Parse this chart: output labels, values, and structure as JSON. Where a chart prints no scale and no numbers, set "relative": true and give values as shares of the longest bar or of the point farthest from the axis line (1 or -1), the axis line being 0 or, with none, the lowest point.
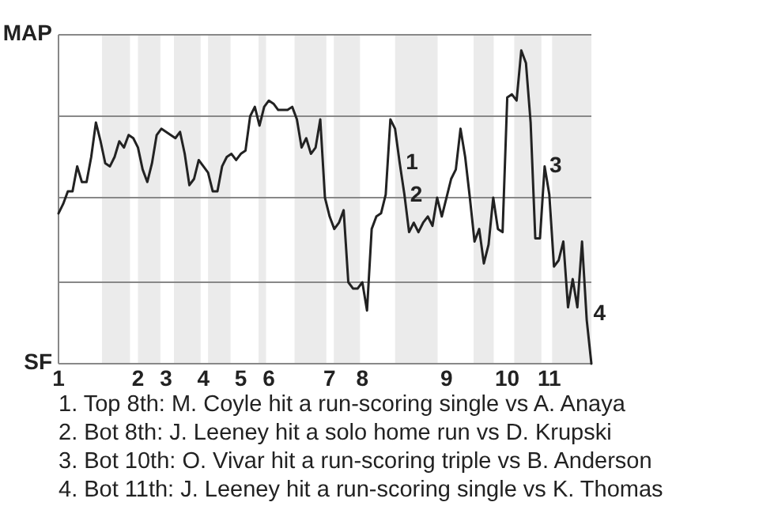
{
  "chart_data": {
    "type": "line",
    "relative": true,
    "categories": [
      "1",
      null,
      null,
      null,
      null,
      null,
      null,
      null,
      null,
      null,
      null,
      null,
      null,
      null,
      null,
      null,
      null,
      "2",
      null,
      null,
      null,
      null,
      null,
      "3",
      null,
      null,
      null,
      null,
      null,
      null,
      null,
      "4",
      null,
      null,
      null,
      null,
      null,
      null,
      null,
      "5",
      null,
      null,
      null,
      null,
      null,
      "6",
      null,
      null,
      null,
      null,
      null,
      null,
      null,
      null,
      null,
      null,
      null,
      null,
      "7",
      null,
      null,
      null,
      null,
      null,
      null,
      "8",
      null,
      null,
      null,
      null,
      null,
      null,
      null,
      null,
      null,
      null,
      null,
      null,
      null,
      null,
      null,
      null,
      null,
      "9",
      null,
      null,
      null,
      null,
      null,
      null,
      null,
      null,
      null,
      null,
      null,
      null,
      "10",
      null,
      null,
      null,
      null,
      null,
      null,
      null,
      null,
      "11",
      null,
      null,
      null,
      null,
      null,
      null,
      null,
      null,
      null
    ],
    "series": [
      {
        "color": "#222222",
        "values": [
          0.48,
          0.51,
          0.55,
          0.55,
          0.63,
          0.58,
          0.58,
          0.66,
          0.77,
          0.71,
          0.64,
          0.63,
          0.66,
          0.71,
          0.69,
          0.73,
          0.72,
          0.69,
          0.62,
          0.58,
          0.64,
          0.73,
          0.75,
          0.74,
          0.73,
          0.72,
          0.74,
          0.67,
          0.57,
          0.59,
          0.65,
          0.63,
          0.61,
          0.55,
          0.55,
          0.63,
          0.66,
          0.67,
          0.65,
          0.67,
          0.68,
          0.79,
          0.82,
          0.76,
          0.82,
          0.84,
          0.83,
          0.81,
          0.81,
          0.81,
          0.82,
          0.78,
          0.69,
          0.72,
          0.67,
          0.69,
          0.78,
          0.53,
          0.47,
          0.43,
          0.45,
          0.49,
          0.26,
          0.24,
          0.24,
          0.26,
          0.17,
          0.43,
          0.47,
          0.48,
          0.54,
          0.78,
          0.75,
          0.64,
          0.54,
          0.42,
          0.45,
          0.42,
          0.45,
          0.47,
          0.44,
          0.53,
          0.47,
          0.53,
          0.59,
          0.62,
          0.75,
          0.66,
          0.53,
          0.39,
          0.43,
          0.32,
          0.38,
          0.53,
          0.43,
          0.42,
          0.85,
          0.86,
          0.84,
          1,
          0.96,
          0.77,
          0.4,
          0.4,
          0.63,
          0.54,
          0.31,
          0.33,
          0.39,
          0.18,
          0.27,
          0.18,
          0.39,
          0.14,
          0
        ]
      }
    ],
    "line_style": "solid",
    "ref_lines": [
      {
        "axis": "y",
        "value": 1.05,
        "label": "MAP",
        "color": "#888888"
      },
      {
        "axis": "y",
        "value": 0.79,
        "label": null,
        "color": "#888888"
      },
      {
        "axis": "y",
        "value": 0.53,
        "label": null,
        "color": "#888888"
      },
      {
        "axis": "y",
        "value": 0.26,
        "label": null,
        "color": "#888888"
      },
      {
        "axis": "y",
        "value": 0,
        "label": "SF",
        "color": "#888888"
      }
    ],
    "annotations": [
      "1",
      "2",
      "3",
      "4",
      "1. Top 8th: M. Coyle hit a run-scoring single vs A. Anaya",
      "2. Bot 8th: J. Leeney hit a solo home run vs D. Krupski",
      "3. Bot 10th: O. Vivar hit a run-scoring triple vs B. Anderson",
      "4. Bot 11th: J. Leeney hit a run-scoring single vs K. Thomas"
    ]
  }
}
